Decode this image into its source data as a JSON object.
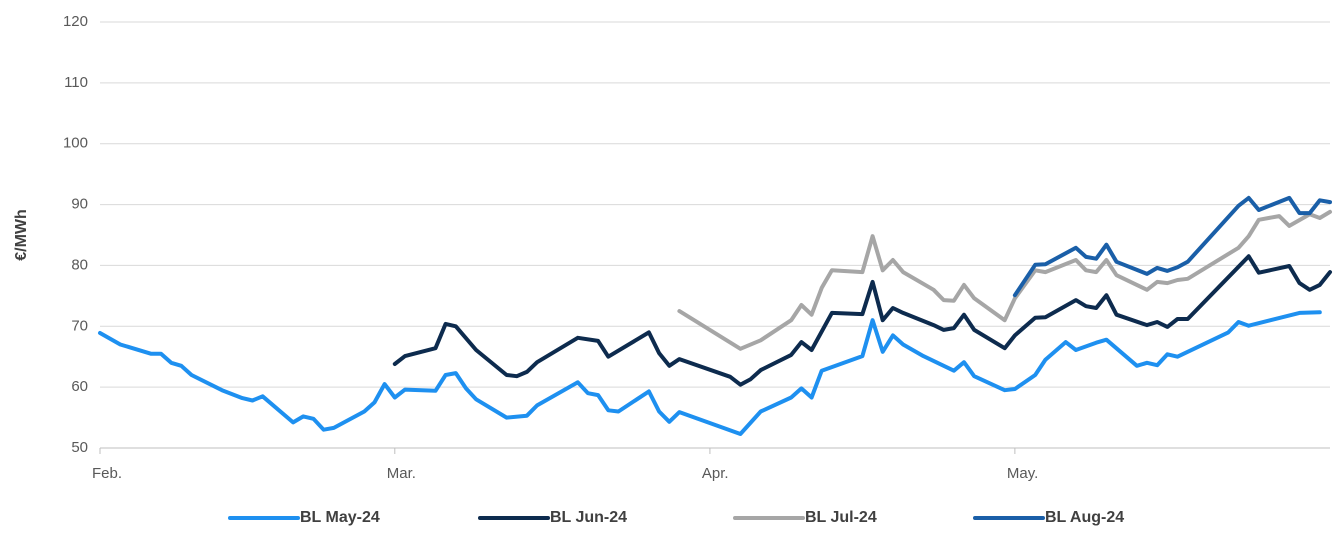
{
  "chart_data": {
    "type": "line",
    "y_label": "€/MWh",
    "xlim": [
      0,
      121
    ],
    "xticks": [
      {
        "value": 0,
        "label": "Feb."
      },
      {
        "value": 29,
        "label": "Mar."
      },
      {
        "value": 60,
        "label": "Apr."
      },
      {
        "value": 90,
        "label": "May."
      }
    ],
    "ylim": [
      50,
      120
    ],
    "yticks": [
      50,
      60,
      70,
      80,
      90,
      100,
      110,
      120
    ],
    "grid": true,
    "legend": "bottom",
    "series": [
      {
        "name": "BL May-24",
        "color": "#1e90f0",
        "x": [
          0,
          2,
          5,
          6,
          7,
          8,
          9,
          12,
          14,
          15,
          16,
          19,
          20,
          21,
          22,
          23,
          26,
          27,
          28,
          29,
          30,
          33,
          34,
          35,
          36,
          37,
          40,
          42,
          43,
          47,
          48,
          49,
          50,
          51,
          54,
          55,
          56,
          57,
          63,
          65,
          68,
          69,
          70,
          71,
          75,
          76,
          77,
          78,
          79,
          81,
          83,
          84,
          85,
          86,
          89,
          90,
          92,
          93,
          95,
          96,
          98,
          99,
          102,
          103,
          104,
          105,
          106,
          111,
          112,
          113,
          118,
          120
        ],
        "values": [
          68.9,
          67,
          65.5,
          65.5,
          64,
          63.5,
          62,
          59.5,
          58.2,
          57.8,
          58.5,
          54.2,
          55.2,
          54.8,
          53,
          53.3,
          56,
          57.5,
          60.5,
          58.3,
          59.6,
          59.4,
          62,
          62.3,
          59.8,
          58,
          55,
          55.3,
          57,
          60.8,
          59,
          58.7,
          56.2,
          56,
          59.3,
          56,
          54.3,
          55.9,
          52.3,
          56,
          58.3,
          59.8,
          58.3,
          62.7,
          65.1,
          71,
          65.8,
          68.5,
          67,
          65.1,
          63.5,
          62.7,
          64.1,
          61.8,
          59.5,
          59.7,
          62,
          64.5,
          67.4,
          66.1,
          67.3,
          67.8,
          63.5,
          64,
          63.6,
          65.4,
          65,
          69,
          70.7,
          70.1,
          72.2,
          72.3
        ]
      },
      {
        "name": "BL Jun-24",
        "color": "#0d2b4e",
        "x": [
          29,
          30,
          33,
          34,
          35,
          37,
          40,
          41,
          42,
          43,
          47,
          49,
          50,
          54,
          55,
          56,
          57,
          62,
          63,
          64,
          65,
          68,
          69,
          70,
          72,
          75,
          76,
          77,
          78,
          79,
          82,
          83,
          84,
          85,
          86,
          89,
          90,
          92,
          93,
          96,
          97,
          98,
          99,
          100,
          103,
          104,
          105,
          106,
          107,
          113,
          114,
          117,
          118,
          119,
          120,
          121
        ],
        "values": [
          63.8,
          65.1,
          66.4,
          70.4,
          70,
          66.1,
          62,
          61.8,
          62.5,
          64.1,
          68.1,
          67.6,
          65,
          69,
          65.6,
          63.5,
          64.6,
          61.7,
          60.4,
          61.3,
          62.8,
          65.3,
          67.4,
          66.1,
          72.2,
          72,
          77.3,
          71,
          73,
          72.2,
          70.2,
          69.4,
          69.7,
          71.9,
          69.4,
          66.4,
          68.5,
          71.4,
          71.5,
          74.3,
          73.3,
          73,
          75.1,
          71.9,
          70.2,
          70.7,
          69.9,
          71.2,
          71.2,
          81.5,
          78.8,
          79.9,
          77.1,
          76,
          76.8,
          78.9
        ]
      },
      {
        "name": "BL Jul-24",
        "color": "#a6a6a6",
        "x": [
          57,
          63,
          65,
          68,
          69,
          70,
          71,
          72,
          75,
          76,
          77,
          78,
          79,
          82,
          83,
          84,
          85,
          86,
          89,
          90,
          92,
          93,
          96,
          97,
          98,
          99,
          100,
          103,
          104,
          105,
          106,
          107,
          112,
          113,
          114,
          116,
          117,
          119,
          120,
          121
        ],
        "values": [
          72.5,
          66.3,
          67.7,
          71,
          73.5,
          71.9,
          76.3,
          79.2,
          78.9,
          84.8,
          79.2,
          80.9,
          78.9,
          76,
          74.3,
          74.2,
          76.8,
          74.6,
          71,
          74.6,
          79.2,
          78.9,
          80.9,
          79.2,
          78.9,
          80.9,
          78.4,
          76,
          77.3,
          77.1,
          77.6,
          77.8,
          82.9,
          84.8,
          87.5,
          88.1,
          86.5,
          88.4,
          87.8,
          88.8
        ]
      },
      {
        "name": "BL Aug-24",
        "color": "#1a5fa8",
        "x": [
          90,
          92,
          93,
          96,
          97,
          98,
          99,
          100,
          103,
          104,
          105,
          106,
          107,
          112,
          113,
          114,
          117,
          118,
          119,
          120,
          121
        ],
        "values": [
          75.1,
          80.1,
          80.2,
          82.9,
          81.4,
          81.1,
          83.4,
          80.6,
          78.6,
          79.6,
          79.1,
          79.7,
          80.6,
          89.8,
          91.1,
          89.1,
          91.1,
          88.6,
          88.6,
          90.7,
          90.4
        ]
      }
    ]
  }
}
